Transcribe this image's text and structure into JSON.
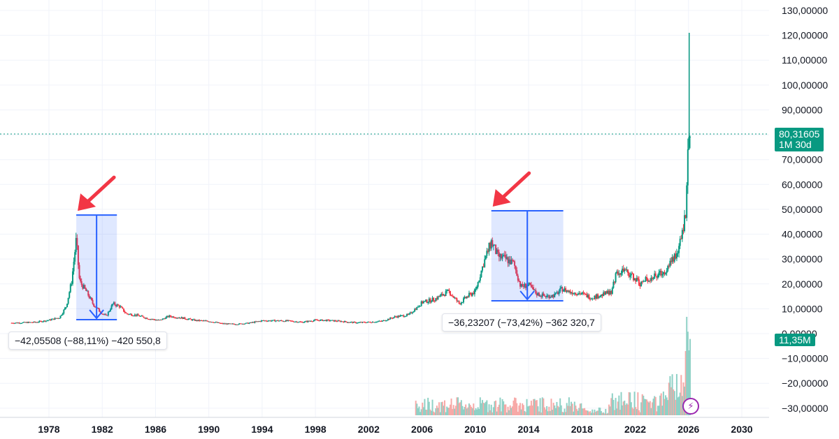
{
  "chart_data": {
    "type": "candlestick",
    "timeframe": "1M",
    "y_axis": {
      "ticks": [
        "130,00000",
        "120,00000",
        "110,00000",
        "100,00000",
        "90,00000",
        "80,00000",
        "70,00000",
        "60,00000",
        "50,00000",
        "40,00000",
        "30,00000",
        "20,00000",
        "10,00000",
        "0,00000",
        "−10,00000",
        "−20,00000",
        "−30,00000"
      ],
      "tick_values": [
        130,
        120,
        110,
        100,
        90,
        80,
        70,
        60,
        50,
        40,
        30,
        20,
        10,
        0,
        -10,
        -20,
        -30
      ],
      "range": [
        -34,
        133
      ]
    },
    "x_axis": {
      "ticks": [
        "1978",
        "1982",
        "1986",
        "1990",
        "1994",
        "1998",
        "2002",
        "2006",
        "2010",
        "2014",
        "2018",
        "2022",
        "2026",
        "2030"
      ],
      "tick_values": [
        1978,
        1982,
        1986,
        1990,
        1994,
        1998,
        2002,
        2006,
        2010,
        2014,
        2018,
        2022,
        2026,
        2030
      ],
      "range": [
        1975.2,
        2031.5
      ]
    },
    "grid": true,
    "price_series": [
      [
        1975.2,
        4.3
      ],
      [
        1976,
        4.4
      ],
      [
        1977,
        4.6
      ],
      [
        1978,
        5.4
      ],
      [
        1978.8,
        6.5
      ],
      [
        1979.3,
        11
      ],
      [
        1979.7,
        21
      ],
      [
        1980.05,
        38
      ],
      [
        1980.3,
        21
      ],
      [
        1980.8,
        17
      ],
      [
        1981.3,
        12
      ],
      [
        1981.8,
        9
      ],
      [
        1982.3,
        7
      ],
      [
        1982.8,
        12
      ],
      [
        1983.3,
        11
      ],
      [
        1983.8,
        8
      ],
      [
        1984.5,
        7.5
      ],
      [
        1985.5,
        6
      ],
      [
        1986.3,
        5.3
      ],
      [
        1987,
        7
      ],
      [
        1988,
        6.3
      ],
      [
        1989,
        5.3
      ],
      [
        1990,
        5
      ],
      [
        1991,
        4
      ],
      [
        1992,
        3.8
      ],
      [
        1993,
        4.2
      ],
      [
        1994,
        5.2
      ],
      [
        1995,
        5.2
      ],
      [
        1996,
        5.1
      ],
      [
        1997,
        4.6
      ],
      [
        1998,
        5.4
      ],
      [
        1999,
        5.3
      ],
      [
        2000,
        4.9
      ],
      [
        2001,
        4.4
      ],
      [
        2002,
        4.6
      ],
      [
        2003,
        5
      ],
      [
        2004,
        6.8
      ],
      [
        2005,
        7.5
      ],
      [
        2006,
        12.5
      ],
      [
        2007,
        14
      ],
      [
        2008,
        17
      ],
      [
        2008.8,
        12
      ],
      [
        2009.4,
        15
      ],
      [
        2010,
        17
      ],
      [
        2010.6,
        28
      ],
      [
        2011.2,
        37
      ],
      [
        2011.7,
        31
      ],
      [
        2012.3,
        30
      ],
      [
        2012.9,
        28
      ],
      [
        2013.4,
        19
      ],
      [
        2014,
        19.5
      ],
      [
        2014.6,
        16
      ],
      [
        2015.3,
        15
      ],
      [
        2016,
        15.5
      ],
      [
        2016.5,
        18
      ],
      [
        2017,
        17
      ],
      [
        2018,
        16
      ],
      [
        2018.7,
        14.5
      ],
      [
        2019.5,
        15.5
      ],
      [
        2020.2,
        17
      ],
      [
        2020.6,
        25
      ],
      [
        2021.2,
        25
      ],
      [
        2021.8,
        23
      ],
      [
        2022.4,
        20
      ],
      [
        2022.9,
        22
      ],
      [
        2023.5,
        23
      ],
      [
        2024.2,
        25
      ],
      [
        2024.6,
        29
      ],
      [
        2025.1,
        32
      ],
      [
        2025.5,
        39
      ],
      [
        2025.8,
        50
      ],
      [
        2025.95,
        75
      ],
      [
        2026.05,
        76.5
      ],
      [
        2026.15,
        80.3
      ]
    ],
    "current_price": "80,31605",
    "current_price_value": 80.31605,
    "current_period": "1M 30d",
    "volume": {
      "current": "11,35M"
    },
    "annotations": [
      {
        "text": "−42,05508 (−88,11%) −420 550,8",
        "from": [
          1980.05,
          47.7
        ],
        "to": [
          1983.1,
          5.6
        ]
      },
      {
        "text": "−36,23207 (−73,42%) −362 320,7",
        "from": [
          2011.2,
          49.4
        ],
        "to": [
          2016.6,
          13.2
        ]
      }
    ],
    "colors": {
      "up": "#089981",
      "down": "#f23645",
      "measure_fill": "#2962ff",
      "arrow": "#f23645",
      "volume_up": "#8fd1c6",
      "volume_down": "#f7a9a7"
    }
  }
}
